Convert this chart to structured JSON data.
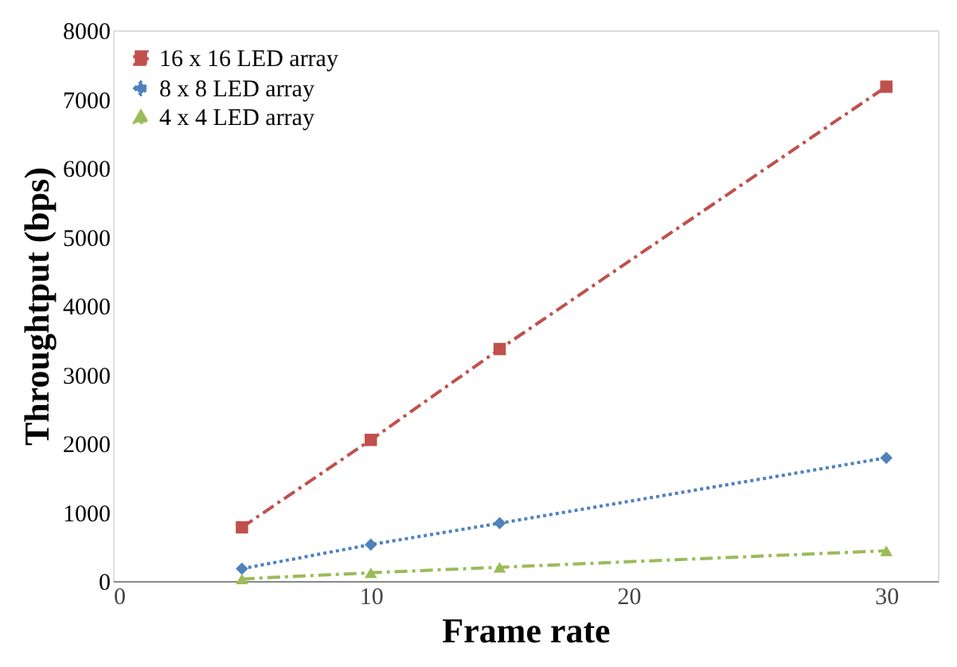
{
  "chart_data": {
    "type": "line",
    "xlabel": "Frame rate",
    "ylabel": "Throughtput (bps)",
    "x": [
      5,
      10,
      15,
      30
    ],
    "series": [
      {
        "name": "16 x 16 LED array",
        "color": "#c0504d",
        "values": [
          780,
          2050,
          3370,
          7180
        ],
        "marker": "square",
        "line_style": "dashed"
      },
      {
        "name": "8 x 8  LED array",
        "color": "#4f81bd",
        "values": [
          180,
          530,
          840,
          1790
        ],
        "marker": "diamond",
        "line_style": "dotted"
      },
      {
        "name": "4 x 4 LED array",
        "color": "#9bbb59",
        "values": [
          30,
          120,
          200,
          440
        ],
        "marker": "triangle",
        "line_style": "dashed"
      }
    ],
    "xlim": [
      0,
      32
    ],
    "xticks": [
      0,
      10,
      20,
      30
    ],
    "ylim": [
      0,
      8000
    ],
    "yticks": [
      0,
      {
        "value": 1000,
        "label": "1000"
      },
      {
        "value": 2000,
        "label": "2000"
      },
      {
        "value": 3000,
        "label": "3000"
      },
      {
        "value": 4000,
        "label": "4000"
      },
      {
        "value": 5000,
        "label": "5000"
      },
      {
        "value": 6000,
        "label": "6000"
      },
      {
        "value": 7000,
        "label": "7000"
      },
      {
        "value": 8000,
        "label": "8000"
      }
    ],
    "grid": false,
    "legend": "top left"
  }
}
